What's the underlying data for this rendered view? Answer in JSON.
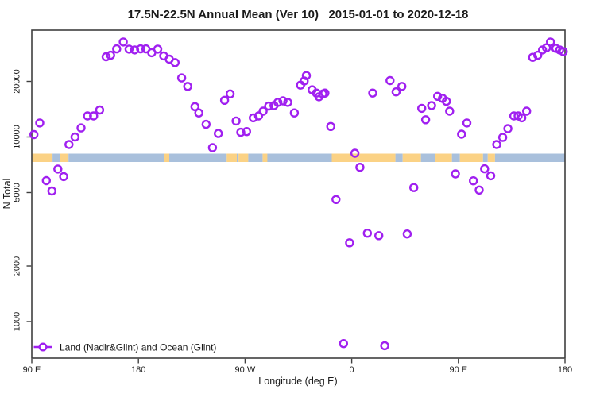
{
  "title": "17.5N-22.5N Annual Mean (Ver 10)   2015-01-01 to 2020-12-18",
  "legend": {
    "label": "Land (Nadir&Glint) and Ocean (Glint)",
    "marker": "open-circle-with-line",
    "marker_color": "#A020F0"
  },
  "colors": {
    "points": "#A020F0",
    "ocean_band": "#A9C0DC",
    "land_band": "#FBD285",
    "axis": "#3f3f3f",
    "text": "#1a1a1a",
    "background": "#ffffff"
  },
  "chart_data": {
    "type": "scatter",
    "title": "17.5N-22.5N Annual Mean (Ver 10)   2015-01-01 to 2020-12-18",
    "xlabel": "Longitude (deg E)",
    "ylabel": "N Total",
    "grid": false,
    "legend_position": "bottom-left-inside",
    "x_axis": {
      "note": "longitude axis starts at 90E and wraps eastward for 450 degrees; x values below are degrees along axis (90..540); >360 wraps (e.g. 450 = 90E again)",
      "range_deg": [
        90,
        540
      ],
      "ticks_deg": [
        90,
        180,
        270,
        360,
        450,
        540
      ],
      "tick_labels": [
        "90 E",
        "180",
        "90 W",
        "0",
        "90 E",
        "180"
      ]
    },
    "y_axis": {
      "scale": "log10",
      "range": [
        634,
        37900
      ],
      "ticks": [
        1000,
        2000,
        5000,
        10000,
        20000
      ],
      "tick_labels": [
        "1000",
        "2000",
        "5000",
        "10000",
        "20000"
      ],
      "tick_labels_rotated": true
    },
    "map_band": {
      "description": "world land/ocean strip for the 17.5N-22.5N latitude band drawn across the plot",
      "center_value": 7600,
      "ocean_color": "#A9C0DC",
      "land_color": "#FBD285",
      "segments": [
        {
          "from": 90,
          "to": 107.5,
          "surface": "land"
        },
        {
          "from": 107.5,
          "to": 114,
          "surface": "ocean"
        },
        {
          "from": 114,
          "to": 121,
          "surface": "land"
        },
        {
          "from": 121,
          "to": 202,
          "surface": "ocean"
        },
        {
          "from": 202,
          "to": 206,
          "surface": "land"
        },
        {
          "from": 206,
          "to": 254.5,
          "surface": "ocean"
        },
        {
          "from": 254.5,
          "to": 263,
          "surface": "land"
        },
        {
          "from": 263,
          "to": 264.5,
          "surface": "ocean"
        },
        {
          "from": 264.5,
          "to": 272.7,
          "surface": "land"
        },
        {
          "from": 272.7,
          "to": 284.8,
          "surface": "ocean"
        },
        {
          "from": 284.8,
          "to": 288.8,
          "surface": "land"
        },
        {
          "from": 288.8,
          "to": 343.2,
          "surface": "ocean"
        },
        {
          "from": 343.2,
          "to": 396.9,
          "surface": "land"
        },
        {
          "from": 396.9,
          "to": 403,
          "surface": "ocean"
        },
        {
          "from": 403,
          "to": 418.4,
          "surface": "land"
        },
        {
          "from": 418.4,
          "to": 430.5,
          "surface": "ocean"
        },
        {
          "from": 430.5,
          "to": 444.6,
          "surface": "land"
        },
        {
          "from": 444.6,
          "to": 451.3,
          "surface": "ocean"
        },
        {
          "from": 451.3,
          "to": 470.8,
          "surface": "land"
        },
        {
          "from": 470.8,
          "to": 474.8,
          "surface": "ocean"
        },
        {
          "from": 474.8,
          "to": 480.9,
          "surface": "land"
        },
        {
          "from": 480.9,
          "to": 540,
          "surface": "ocean"
        }
      ]
    },
    "series": [
      {
        "name": "Land (Nadir&Glint) and Ocean (Glint)",
        "marker": "open-circle",
        "color": "#A020F0",
        "points": [
          [
            91.8,
            10300
          ],
          [
            96.7,
            11900
          ],
          [
            102.3,
            5800
          ],
          [
            107.0,
            5100
          ],
          [
            112.0,
            6700
          ],
          [
            116.9,
            6100
          ],
          [
            121.4,
            9100
          ],
          [
            126.5,
            10000
          ],
          [
            131.6,
            11200
          ],
          [
            137.0,
            13000
          ],
          [
            142.2,
            13000
          ],
          [
            147.3,
            14000
          ],
          [
            152.7,
            27200
          ],
          [
            156.5,
            27700
          ],
          [
            161.6,
            30000
          ],
          [
            167.2,
            32700
          ],
          [
            172.1,
            29900
          ],
          [
            176.8,
            29600
          ],
          [
            181.8,
            30000
          ],
          [
            186.3,
            30000
          ],
          [
            191.2,
            28600
          ],
          [
            196.3,
            29900
          ],
          [
            201.3,
            27500
          ],
          [
            206.0,
            26400
          ],
          [
            210.9,
            25300
          ],
          [
            216.5,
            20900
          ],
          [
            221.6,
            18800
          ],
          [
            227.7,
            14600
          ],
          [
            231.0,
            13500
          ],
          [
            237.1,
            11700
          ],
          [
            242.5,
            8750
          ],
          [
            247.4,
            10450
          ],
          [
            252.7,
            15800
          ],
          [
            257.4,
            17100
          ],
          [
            262.4,
            12200
          ],
          [
            266.4,
            10600
          ],
          [
            271.3,
            10700
          ],
          [
            276.9,
            12700
          ],
          [
            281.4,
            13000
          ],
          [
            285.2,
            13800
          ],
          [
            289.9,
            14700
          ],
          [
            294.4,
            14800
          ],
          [
            297.7,
            15400
          ],
          [
            302.0,
            15700
          ],
          [
            306.0,
            15400
          ],
          [
            311.6,
            13500
          ],
          [
            316.8,
            19100
          ],
          [
            319.9,
            20100
          ],
          [
            321.7,
            21500
          ],
          [
            326.6,
            18000
          ],
          [
            330.2,
            17300
          ],
          [
            332.4,
            16500
          ],
          [
            335.6,
            17100
          ],
          [
            337.4,
            17300
          ],
          [
            342.3,
            11400
          ],
          [
            346.7,
            4580
          ],
          [
            353.1,
            760
          ],
          [
            358.2,
            2670
          ],
          [
            362.7,
            8160
          ],
          [
            366.9,
            6850
          ],
          [
            373.2,
            3010
          ],
          [
            377.7,
            17300
          ],
          [
            382.9,
            2920
          ],
          [
            387.8,
            740
          ],
          [
            392.3,
            20200
          ],
          [
            397.4,
            17550
          ],
          [
            402.3,
            18800
          ],
          [
            406.8,
            2980
          ],
          [
            412.4,
            5320
          ],
          [
            419.1,
            14300
          ],
          [
            422.4,
            12400
          ],
          [
            427.4,
            14800
          ],
          [
            432.5,
            16600
          ],
          [
            436.6,
            16200
          ],
          [
            439.9,
            15600
          ],
          [
            442.6,
            13800
          ],
          [
            447.5,
            6310
          ],
          [
            452.7,
            10350
          ],
          [
            457.2,
            11900
          ],
          [
            462.7,
            5790
          ],
          [
            467.6,
            5160
          ],
          [
            472.1,
            6720
          ],
          [
            477.3,
            6160
          ],
          [
            482.4,
            9100
          ],
          [
            487.4,
            9950
          ],
          [
            491.8,
            11100
          ],
          [
            496.8,
            13000
          ],
          [
            500.4,
            13000
          ],
          [
            503.5,
            12700
          ],
          [
            507.6,
            13800
          ],
          [
            512.7,
            27000
          ],
          [
            517.0,
            27700
          ],
          [
            521.0,
            29600
          ],
          [
            524.4,
            30400
          ],
          [
            527.7,
            32700
          ],
          [
            532.2,
            30200
          ],
          [
            535.5,
            29600
          ],
          [
            538.5,
            29000
          ]
        ]
      }
    ]
  }
}
